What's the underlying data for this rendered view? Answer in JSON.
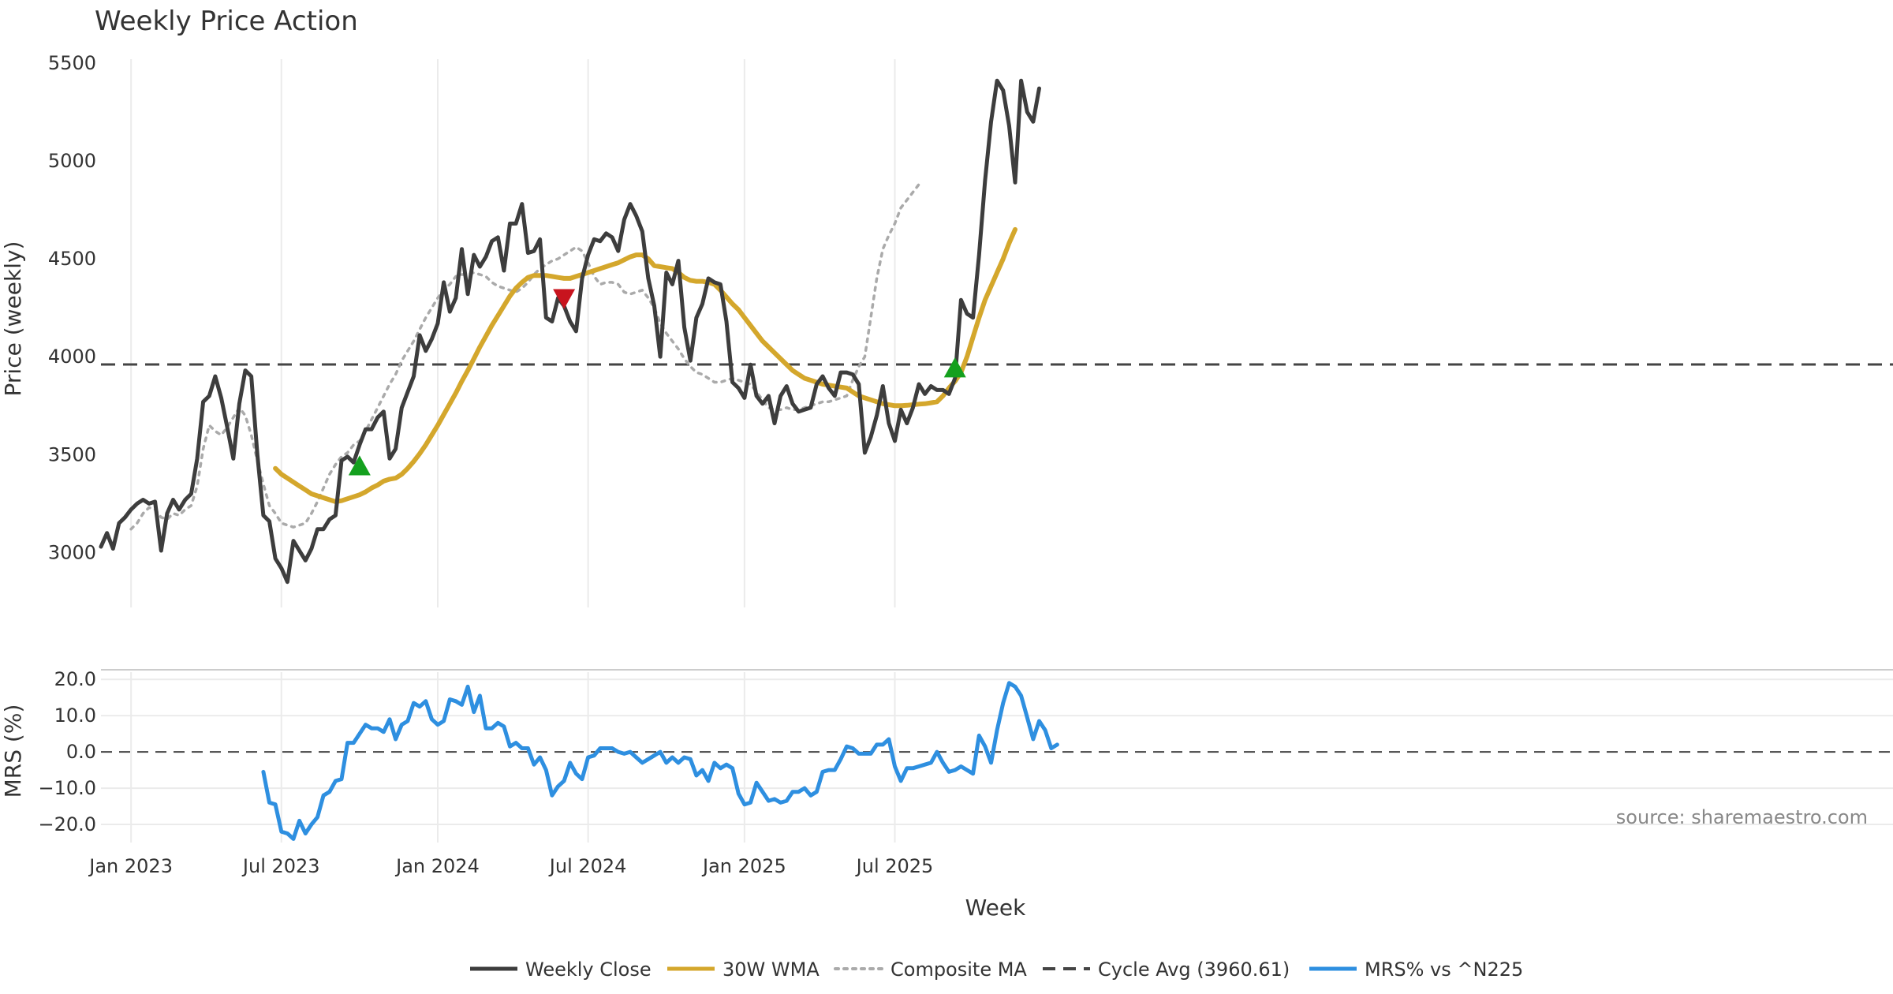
{
  "chart_data": {
    "type": "line",
    "title": "Weekly Price Action",
    "xlabel": "Week",
    "x_start": "2022-11-28",
    "x_tick_labels": [
      "Jan 2023",
      "Jul 2023",
      "Jan 2024",
      "Jul 2024",
      "Jan 2025",
      "Jul 2025"
    ],
    "x_tick_weeks": [
      5,
      30,
      56,
      81,
      107,
      132
    ],
    "grid": true,
    "price_panel": {
      "ylabel": "Price (weekly)",
      "ylim": [
        2720,
        5600
      ],
      "yticks": [
        3000,
        3500,
        4000,
        4500,
        5000,
        5500
      ],
      "cycle_avg": 3960.61,
      "series": [
        {
          "name": "Weekly Close",
          "color": "#3d3d3d",
          "style": "solid",
          "values": [
            3030,
            3100,
            3020,
            3150,
            3180,
            3220,
            3250,
            3270,
            3250,
            3260,
            3010,
            3200,
            3270,
            3220,
            3270,
            3300,
            3480,
            3770,
            3800,
            3900,
            3790,
            3640,
            3480,
            3760,
            3930,
            3900,
            3500,
            3190,
            3160,
            2970,
            2920,
            2850,
            3060,
            3010,
            2960,
            3020,
            3120,
            3120,
            3170,
            3190,
            3470,
            3490,
            3460,
            3550,
            3630,
            3630,
            3690,
            3720,
            3480,
            3530,
            3740,
            3820,
            3900,
            4110,
            4030,
            4090,
            4170,
            4380,
            4230,
            4300,
            4550,
            4320,
            4520,
            4460,
            4510,
            4590,
            4610,
            4440,
            4680,
            4680,
            4780,
            4530,
            4540,
            4600,
            4200,
            4180,
            4300,
            4260,
            4180,
            4130,
            4400,
            4520,
            4600,
            4590,
            4630,
            4610,
            4540,
            4700,
            4780,
            4720,
            4640,
            4400,
            4260,
            4000,
            4430,
            4370,
            4490,
            4150,
            3980,
            4200,
            4270,
            4400,
            4380,
            4370,
            4180,
            3870,
            3840,
            3790,
            3960,
            3800,
            3760,
            3800,
            3660,
            3800,
            3850,
            3760,
            3720,
            3730,
            3740,
            3860,
            3900,
            3840,
            3800,
            3920,
            3920,
            3910,
            3860,
            3510,
            3590,
            3700,
            3850,
            3660,
            3570,
            3730,
            3660,
            3740,
            3860,
            3810,
            3850,
            3830,
            3830,
            3810,
            3890,
            4290,
            4220,
            4200,
            4520,
            4900,
            5200,
            5410,
            5360,
            5180,
            4890,
            5410,
            5250,
            5200,
            5370
          ]
        },
        {
          "name": "30W WMA",
          "color": "#d4a72c",
          "style": "solid",
          "values": [
            null,
            null,
            null,
            null,
            null,
            null,
            null,
            null,
            null,
            null,
            null,
            null,
            null,
            null,
            null,
            null,
            null,
            null,
            null,
            null,
            null,
            null,
            null,
            null,
            null,
            null,
            null,
            null,
            null,
            3430,
            3400,
            3380,
            3360,
            3340,
            3320,
            3300,
            3290,
            3280,
            3270,
            3260,
            3265,
            3275,
            3285,
            3295,
            3310,
            3330,
            3345,
            3365,
            3375,
            3380,
            3400,
            3430,
            3465,
            3505,
            3550,
            3600,
            3650,
            3705,
            3760,
            3815,
            3875,
            3930,
            3990,
            4050,
            4105,
            4160,
            4210,
            4260,
            4310,
            4350,
            4380,
            4405,
            4415,
            4415,
            4415,
            4410,
            4405,
            4400,
            4400,
            4410,
            4420,
            4430,
            4440,
            4450,
            4460,
            4470,
            4480,
            4495,
            4510,
            4520,
            4520,
            4500,
            4465,
            4460,
            4455,
            4450,
            4430,
            4405,
            4390,
            4385,
            4385,
            4380,
            4370,
            4340,
            4305,
            4270,
            4240,
            4200,
            4160,
            4120,
            4080,
            4050,
            4020,
            3990,
            3960,
            3930,
            3910,
            3890,
            3880,
            3870,
            3860,
            3855,
            3850,
            3845,
            3840,
            3820,
            3800,
            3790,
            3780,
            3770,
            3760,
            3755,
            3750,
            3750,
            3752,
            3755,
            3758,
            3760,
            3765,
            3770,
            3800,
            3840,
            3875,
            3920,
            4000,
            4100,
            4200,
            4290,
            4360,
            4430,
            4500,
            4580,
            4650
          ]
        },
        {
          "name": "Composite MA",
          "color": "#aaaaaa",
          "style": "dotted",
          "values": [
            null,
            null,
            null,
            null,
            null,
            3120,
            3150,
            3200,
            3230,
            3220,
            3180,
            3170,
            3200,
            3190,
            3220,
            3240,
            3340,
            3530,
            3650,
            3620,
            3600,
            3640,
            3690,
            3740,
            3700,
            3600,
            3470,
            3350,
            3240,
            3200,
            3150,
            3140,
            3130,
            3140,
            3150,
            3200,
            3260,
            3330,
            3400,
            3450,
            3490,
            3510,
            3550,
            3570,
            3620,
            3680,
            3740,
            3800,
            3860,
            3910,
            3980,
            4030,
            4080,
            4140,
            4200,
            4250,
            4300,
            4340,
            4370,
            4410,
            4420,
            4420,
            4430,
            4420,
            4410,
            4380,
            4360,
            4350,
            4340,
            4330,
            4350,
            4380,
            4420,
            4450,
            4470,
            4490,
            4500,
            4520,
            4540,
            4560,
            4540,
            4480,
            4410,
            4370,
            4380,
            4380,
            4370,
            4330,
            4320,
            4330,
            4340,
            4300,
            4250,
            4170,
            4120,
            4080,
            4040,
            3990,
            3950,
            3920,
            3910,
            3890,
            3870,
            3870,
            3880,
            3890,
            3880,
            3870,
            3860,
            3820,
            3780,
            3740,
            3730,
            3730,
            3740,
            3730,
            3730,
            3740,
            3750,
            3760,
            3770,
            3770,
            3780,
            3790,
            3800,
            3880,
            3950,
            4000,
            4200,
            4400,
            4550,
            4620,
            4680,
            4760,
            4800,
            4840,
            4880
          ]
        }
      ],
      "markers": [
        {
          "type": "buy",
          "shape": "triangle-up",
          "color": "#14a01e",
          "week": 43,
          "value": 3440
        },
        {
          "type": "sell",
          "shape": "triangle-down",
          "color": "#c8141e",
          "week": 77,
          "value": 4300
        },
        {
          "type": "buy",
          "shape": "triangle-up",
          "color": "#14a01e",
          "week": 142,
          "value": 3940
        }
      ]
    },
    "mrs_panel": {
      "ylabel": "MRS (%)",
      "ylim": [
        -25,
        22
      ],
      "yticks": [
        20,
        10,
        0,
        -10,
        -20
      ],
      "ytick_labels": [
        "20.0",
        "10.0",
        "0.0",
        "−10.0",
        "−20.0"
      ],
      "zero_line": 0,
      "series": [
        {
          "name": "MRS% vs ^N225",
          "color": "#2e8fe0",
          "start_week": 27,
          "values": [
            -5.5,
            -14,
            -14.5,
            -22,
            -22.5,
            -24,
            -19,
            -22.5,
            -20,
            -18,
            -12,
            -11,
            -8,
            -7.5,
            2.5,
            2.5,
            5,
            7.5,
            6.5,
            6.5,
            5.5,
            9,
            3.5,
            7.5,
            8.5,
            13.5,
            12.5,
            14,
            9,
            7.5,
            8.5,
            14.5,
            14,
            13,
            18,
            11,
            15.5,
            6.5,
            6.5,
            8,
            7,
            1.5,
            2.5,
            1,
            1,
            -3.5,
            -1.5,
            -5,
            -12,
            -9.5,
            -8,
            -3,
            -6,
            -7.5,
            -1.5,
            -1,
            1,
            1,
            1,
            0,
            -0.5,
            0,
            -1.5,
            -3,
            -2,
            -1,
            0,
            -3,
            -1.5,
            -3,
            -1.5,
            -2,
            -6.5,
            -5,
            -8,
            -3,
            -4.5,
            -3.5,
            -4.5,
            -11.5,
            -14.5,
            -14,
            -8.5,
            -11,
            -13.5,
            -13,
            -14,
            -13.5,
            -11,
            -11,
            -10,
            -12,
            -11,
            -5.5,
            -5,
            -5,
            -2,
            1.5,
            1,
            -0.5,
            -0.5,
            -0.5,
            2,
            2,
            3.5,
            -4,
            -8,
            -4.5,
            -4.5,
            -4,
            -3.5,
            -3,
            0,
            -3,
            -5.5,
            -5,
            -4,
            -5,
            -6,
            4.5,
            1.5,
            -3,
            6,
            13.5,
            19,
            18,
            15.5,
            9.5,
            3.5,
            8.5,
            6,
            1,
            2
          ]
        }
      ]
    },
    "legend": {
      "placement": "bottom-center",
      "entries": [
        {
          "label": "Weekly Close",
          "color": "#3d3d3d",
          "style": "solid"
        },
        {
          "label": "30W WMA",
          "color": "#d4a72c",
          "style": "solid"
        },
        {
          "label": "Composite MA",
          "color": "#aaaaaa",
          "style": "dotted"
        },
        {
          "label": "Cycle Avg (3960.61)",
          "color": "#444444",
          "style": "dashed"
        },
        {
          "label": "MRS% vs ^N225",
          "color": "#2e8fe0",
          "style": "solid"
        }
      ]
    },
    "annotation": "source: sharemaestro.com"
  }
}
